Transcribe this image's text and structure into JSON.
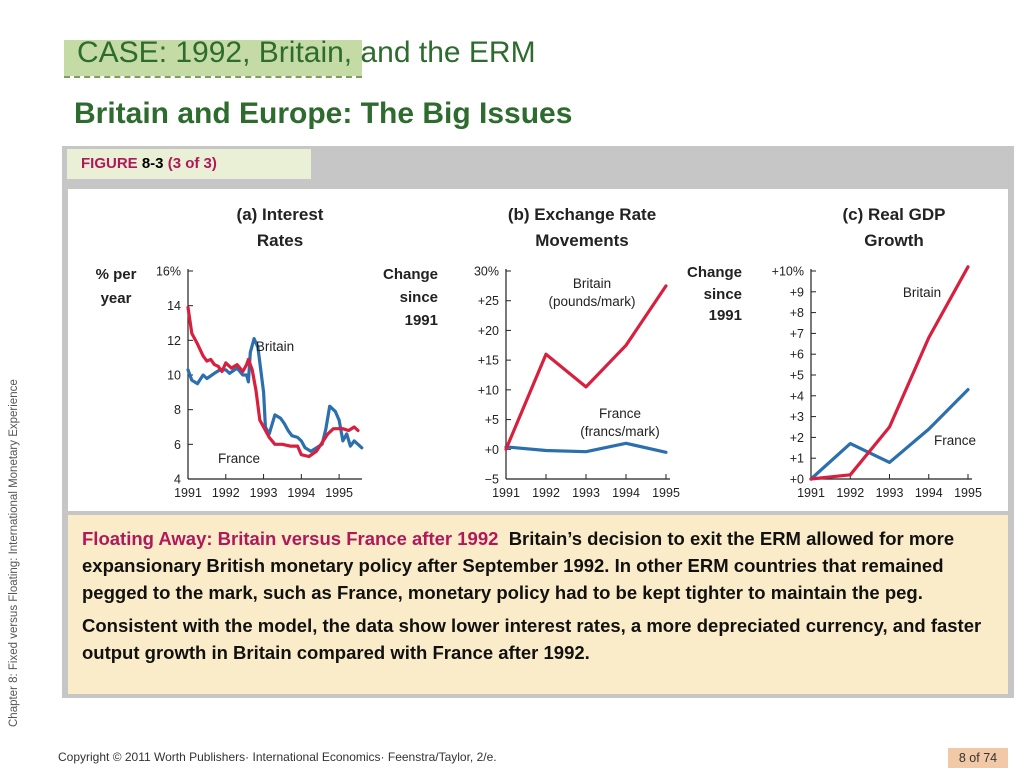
{
  "slide": {
    "title": "CASE: 1992, Britain, and the ERM",
    "subtitle": "Britain and Europe: The Big Issues",
    "side_text": "Chapter 8: Fixed versus Floating: International Monetary Experience",
    "footer": "Copyright © 2011 Worth Publishers· International Economics· Feenstra/Taylor, 2/e.",
    "page": "8 of 74"
  },
  "figure": {
    "word": "FIGURE",
    "number": "8-3",
    "part": "(3 of 3)"
  },
  "caption": {
    "heading": "Floating Away: Britain versus France after 1992",
    "p1": "Britain’s decision to exit the ERM allowed for more expansionary British monetary policy after September 1992. In other ERM countries that remained pegged to the mark, such as France, monetary policy had to be kept tighter to maintain the peg.",
    "p2": "Consistent with the model, the data show lower interest rates, a more depreciated currency, and faster output growth in Britain compared with France after 1992."
  },
  "colors": {
    "britain": "#d8203e",
    "france": "#2c6fae"
  },
  "chart_data": [
    {
      "type": "line",
      "title": "(a) Interest Rates",
      "ylabel": "% per year",
      "ylim": [
        4,
        16
      ],
      "yticks": [
        "16%",
        "14",
        "12",
        "10",
        "8",
        "6",
        "4"
      ],
      "x_ticks": [
        "1991",
        "1992",
        "1993",
        "1994",
        "1995"
      ],
      "series": [
        {
          "name": "France",
          "color": "#2c6fae",
          "x": [
            1991.0,
            1991.1,
            1991.25,
            1991.4,
            1991.5,
            1991.7,
            1991.85,
            1992.0,
            1992.1,
            1992.3,
            1992.45,
            1992.55,
            1992.6,
            1992.65,
            1992.75,
            1992.85,
            1993.0,
            1993.05,
            1993.15,
            1993.3,
            1993.45,
            1993.55,
            1993.65,
            1993.75,
            1993.9,
            1994.0,
            1994.1,
            1994.25,
            1994.4,
            1994.55,
            1994.65,
            1994.75,
            1994.9,
            1995.0,
            1995.1,
            1995.2,
            1995.3,
            1995.4,
            1995.5,
            1995.6
          ],
          "y": [
            10.3,
            9.7,
            9.5,
            10.0,
            9.8,
            10.1,
            10.3,
            10.3,
            10.1,
            10.4,
            10.0,
            10.0,
            9.6,
            11.3,
            12.1,
            11.6,
            9.0,
            7.0,
            6.6,
            7.7,
            7.5,
            7.2,
            6.8,
            6.5,
            6.4,
            6.2,
            5.8,
            5.6,
            5.8,
            6.0,
            6.9,
            8.2,
            7.9,
            7.4,
            6.2,
            6.6,
            5.9,
            6.2,
            6.0,
            5.8
          ]
        },
        {
          "name": "Britain",
          "color": "#d8203e",
          "x": [
            1991.0,
            1991.1,
            1991.25,
            1991.4,
            1991.5,
            1991.6,
            1991.7,
            1991.8,
            1991.9,
            1992.0,
            1992.15,
            1992.3,
            1992.45,
            1992.55,
            1992.6,
            1992.7,
            1992.8,
            1992.9,
            1993.0,
            1993.15,
            1993.3,
            1993.5,
            1993.7,
            1993.9,
            1994.0,
            1994.2,
            1994.4,
            1994.55,
            1994.7,
            1994.85,
            1995.0,
            1995.1,
            1995.25,
            1995.4,
            1995.5
          ],
          "y": [
            13.9,
            12.4,
            11.8,
            11.1,
            10.8,
            10.9,
            10.6,
            10.5,
            10.2,
            10.7,
            10.4,
            10.6,
            10.2,
            10.6,
            10.9,
            10.3,
            9.1,
            7.4,
            7.0,
            6.4,
            6.0,
            6.0,
            5.9,
            5.9,
            5.4,
            5.3,
            5.6,
            6.1,
            6.6,
            6.9,
            6.9,
            6.9,
            6.8,
            7.0,
            6.8
          ]
        }
      ]
    },
    {
      "type": "line",
      "title": "(b) Exchange Rate Movements",
      "ylabel": "Change since 1991",
      "ylim": [
        -5,
        30
      ],
      "yticks": [
        "30%",
        "+25",
        "+20",
        "+15",
        "+10",
        "+5",
        "+0",
        "−5"
      ],
      "x_ticks": [
        "1991",
        "1992",
        "1993",
        "1994",
        "1995"
      ],
      "series": [
        {
          "name": "Britain (pounds/mark)",
          "color": "#d8203e",
          "x": [
            1991,
            1992,
            1993,
            1994,
            1995
          ],
          "y": [
            0,
            16,
            10.5,
            17.5,
            27.5
          ]
        },
        {
          "name": "France (francs/mark)",
          "color": "#2c6fae",
          "x": [
            1991,
            1992,
            1993,
            1994,
            1995
          ],
          "y": [
            0.4,
            -0.2,
            -0.4,
            1.0,
            -0.5
          ]
        }
      ]
    },
    {
      "type": "line",
      "title": "(c) Real GDP Growth",
      "ylabel": "Change since 1991",
      "ylim": [
        0,
        10
      ],
      "yticks": [
        "+10%",
        "+9",
        "+8",
        "+7",
        "+6",
        "+5",
        "+4",
        "+3",
        "+2",
        "+1",
        "+0"
      ],
      "x_ticks": [
        "1991",
        "1992",
        "1993",
        "1994",
        "1995"
      ],
      "series": [
        {
          "name": "Britain",
          "color": "#d8203e",
          "x": [
            1991,
            1992,
            1993,
            1994,
            1995
          ],
          "y": [
            0,
            0.2,
            2.5,
            6.8,
            10.2
          ]
        },
        {
          "name": "France",
          "color": "#2c6fae",
          "x": [
            1991,
            1992,
            1993,
            1994,
            1995
          ],
          "y": [
            0,
            1.7,
            0.8,
            2.4,
            4.3
          ]
        }
      ]
    }
  ]
}
